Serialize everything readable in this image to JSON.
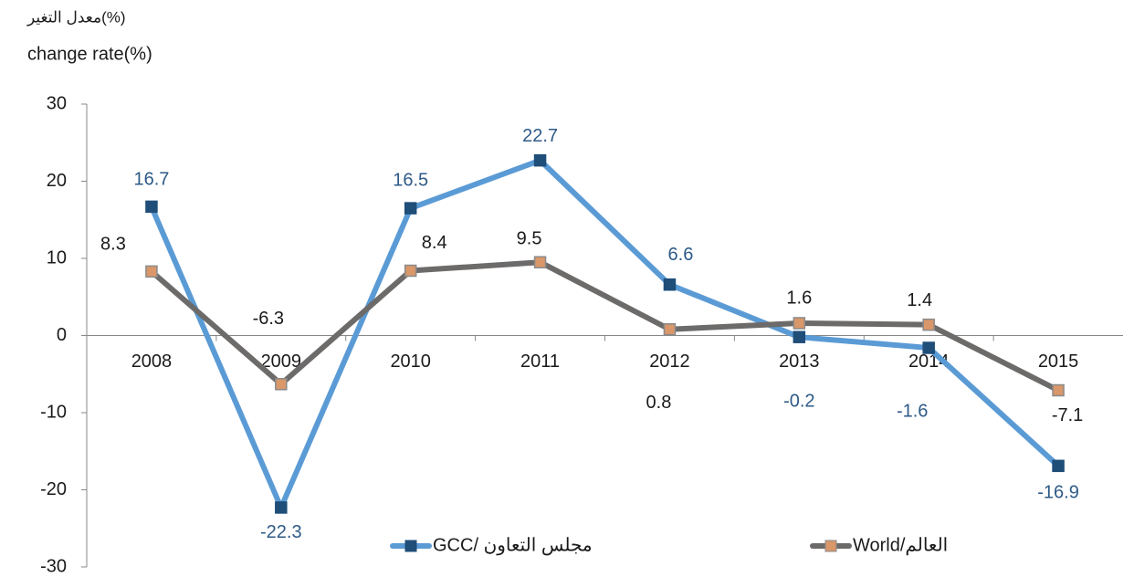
{
  "chart_data": {
    "type": "line",
    "ylabel_lines": [
      "معدل التغير(%)",
      "change rate(%)"
    ],
    "categories": [
      "2008",
      "2009",
      "2010",
      "2011",
      "2012",
      "2013",
      "2014",
      "2015"
    ],
    "series": [
      {
        "name": "GCC/ مجلس التعاون",
        "color": "#5b9bd5",
        "marker_color": "#1f4e79",
        "label_color": "#2e5a87",
        "values": [
          16.7,
          -22.3,
          16.5,
          22.7,
          6.6,
          -0.2,
          -1.6,
          -16.9
        ]
      },
      {
        "name": "World/العالم",
        "color": "#6d6a6a",
        "marker_color": "#d9976a",
        "label_color": "#1a1a1a",
        "values": [
          8.3,
          -6.3,
          8.4,
          9.5,
          0.8,
          1.6,
          1.4,
          -7.1
        ]
      }
    ],
    "ylim": [
      -30,
      30
    ],
    "yticks": [
      -30,
      -20,
      -10,
      0,
      10,
      20,
      30
    ],
    "grid": false,
    "legend": "bottom"
  }
}
